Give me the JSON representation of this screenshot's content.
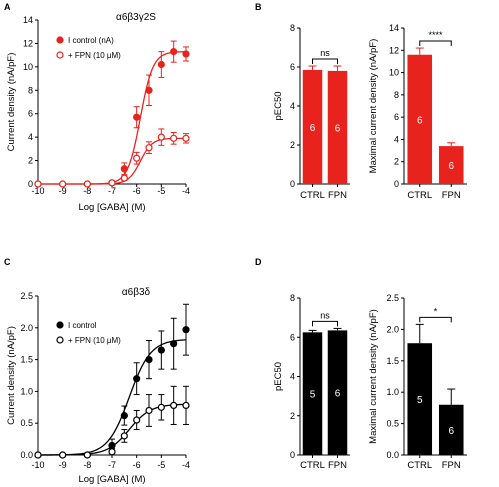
{
  "chart_data": [
    {
      "panel": "A",
      "type": "scatter",
      "title": "α6β3γ2S",
      "xlabel": "Log [GABA] (M)",
      "ylabel": "Current density (nA/pF)",
      "xlim": [
        -10,
        -4
      ],
      "ylim": [
        0,
        14
      ],
      "xticks": [
        "-10",
        "-9",
        "-8",
        "-7",
        "-6",
        "-5",
        "-4"
      ],
      "yticks": [
        "0",
        "2",
        "4",
        "6",
        "8",
        "10",
        "12",
        "14"
      ],
      "color": "#e8231e",
      "legend_position": "top-left",
      "series": [
        {
          "name": "I control (nA)",
          "marker": "filled",
          "x": [
            -10,
            -9,
            -8,
            -7,
            -6.5,
            -6,
            -5.5,
            -5,
            -4.5,
            -4
          ],
          "y": [
            0,
            0,
            0,
            0.1,
            1.3,
            5.7,
            8,
            10.2,
            11.3,
            11.1
          ],
          "err": [
            0,
            0,
            0,
            0.1,
            0.5,
            0.9,
            1.3,
            1.1,
            0.9,
            0.6
          ],
          "fit": {
            "top": 11.3,
            "logEC50": -5.85,
            "hill": 1.7
          }
        },
        {
          "name": "+ FPN (10 μM)",
          "marker": "open",
          "x": [
            -10,
            -9,
            -8,
            -7,
            -6.5,
            -6,
            -5.5,
            -5,
            -4.5,
            -4
          ],
          "y": [
            0,
            0,
            0,
            0.1,
            0.5,
            2.2,
            3.1,
            4,
            3.9,
            3.9
          ],
          "err": [
            0,
            0,
            0,
            0.1,
            0.2,
            0.5,
            0.5,
            0.7,
            0.5,
            0.4
          ],
          "fit": {
            "top": 3.9,
            "logEC50": -5.85,
            "hill": 1.8
          }
        }
      ]
    },
    {
      "panel": "B",
      "type": "bar",
      "categories": [
        "CTRL",
        "FPN"
      ],
      "values": [
        5.85,
        5.8
      ],
      "err": [
        0.2,
        0.25
      ],
      "n": [
        "6",
        "6"
      ],
      "ylabel": "pEC50",
      "ylim": [
        0,
        8
      ],
      "yticks": [
        "0",
        "2",
        "4",
        "6",
        "8"
      ],
      "significance": "ns",
      "color": "#e8231e"
    },
    {
      "panel": "B",
      "type": "bar",
      "categories": [
        "CTRL",
        "FPN"
      ],
      "values": [
        11.6,
        3.4
      ],
      "err": [
        0.6,
        0.3
      ],
      "n": [
        "6",
        "6"
      ],
      "ylabel": "Maximal current density (nA/pF)",
      "ylim": [
        0,
        14
      ],
      "yticks": [
        "0",
        "2",
        "4",
        "6",
        "8",
        "10",
        "12",
        "14"
      ],
      "significance": "****",
      "color": "#e8231e"
    },
    {
      "panel": "C",
      "type": "scatter",
      "title": "α6β3δ",
      "xlabel": "Log [GABA] (M)",
      "ylabel": "Current density (nA/pF)",
      "xlim": [
        -10,
        -4
      ],
      "ylim": [
        0,
        2.5
      ],
      "xticks": [
        "-10",
        "-9",
        "-8",
        "-7",
        "-6",
        "-5",
        "-4"
      ],
      "yticks": [
        "0.0",
        "0.5",
        "1.0",
        "1.5",
        "2.0",
        "2.5"
      ],
      "color": "#000000",
      "legend_position": "top-left",
      "series": [
        {
          "name": "I control",
          "marker": "filled",
          "x": [
            -10,
            -9,
            -8,
            -7,
            -6.5,
            -6,
            -5.5,
            -5,
            -4.5,
            -4
          ],
          "y": [
            0,
            0,
            0,
            0.15,
            0.62,
            1.2,
            1.5,
            1.65,
            1.75,
            1.97
          ],
          "err": [
            0,
            0,
            0,
            0.1,
            0.15,
            0.25,
            0.3,
            0.3,
            0.4,
            0.4
          ],
          "fit": {
            "top": 1.82,
            "logEC50": -6.3,
            "hill": 1.0
          }
        },
        {
          "name": "+ FPN (10 μM)",
          "marker": "open",
          "x": [
            -10,
            -9,
            -8,
            -7,
            -6.5,
            -6,
            -5.5,
            -5,
            -4.5,
            -4
          ],
          "y": [
            0,
            0,
            0,
            0.05,
            0.3,
            0.55,
            0.7,
            0.75,
            0.78,
            0.78
          ],
          "err": [
            0,
            0,
            0,
            0.05,
            0.1,
            0.15,
            0.25,
            0.2,
            0.3,
            0.3
          ],
          "fit": {
            "top": 0.8,
            "logEC50": -6.3,
            "hill": 1.0
          }
        }
      ]
    },
    {
      "panel": "D",
      "type": "bar",
      "categories": [
        "CTRL",
        "FPN"
      ],
      "values": [
        6.25,
        6.35
      ],
      "err": [
        0.1,
        0.1
      ],
      "n": [
        "5",
        "6"
      ],
      "ylabel": "pEC50",
      "ylim": [
        0,
        8
      ],
      "yticks": [
        "0",
        "2",
        "4",
        "6",
        "8"
      ],
      "significance": "ns",
      "color": "#000000"
    },
    {
      "panel": "D",
      "type": "bar",
      "categories": [
        "CTRL",
        "FPN"
      ],
      "values": [
        1.78,
        0.8
      ],
      "err": [
        0.3,
        0.25
      ],
      "n": [
        "5",
        "6"
      ],
      "ylabel": "Maximal current density (nA/pF)",
      "ylim": [
        0,
        2.5
      ],
      "yticks": [
        "0.0",
        "0.5",
        "1.0",
        "1.5",
        "2.0",
        "2.5"
      ],
      "significance": "*",
      "color": "#000000"
    }
  ]
}
